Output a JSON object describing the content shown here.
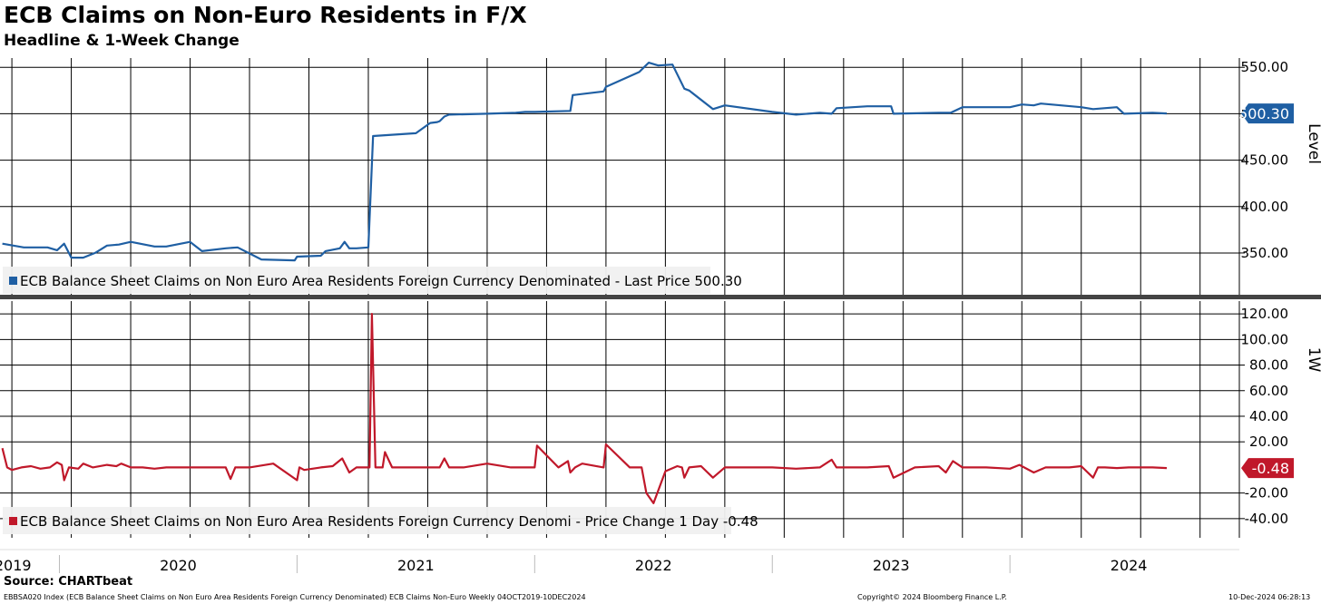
{
  "header": {
    "title": "ECB Claims on Non-Euro Residents in F/X",
    "subtitle": "Headline & 1-Week Change"
  },
  "footer": {
    "source": "Source: CHARTbeat",
    "index_note": "EBBSA020 Index (ECB Balance Sheet Claims on Non Euro Area Residents Foreign Currency Denominated) ECB Claims Non-Euro  Weekly 04OCT2019-10DEC2024",
    "copyright": "Copyright© 2024 Bloomberg Finance L.P.",
    "timestamp": "10-Dec-2024 06:28:13"
  },
  "colors": {
    "level_line": "#1f5fa3",
    "change_line": "#c0182a",
    "grid": "#000000"
  },
  "chart_data": [
    {
      "type": "line",
      "panel": "top",
      "ylabel": "Level",
      "ylim": [
        305,
        560
      ],
      "yticks": [
        "550.00",
        "500.00",
        "450.00",
        "400.00",
        "350.00"
      ],
      "ytick_values": [
        550,
        500,
        450,
        400,
        350
      ],
      "last_value_label": "500.30",
      "last_value": 500.3,
      "legend": "ECB Balance Sheet Claims on Non Euro Area Residents Foreign Currency Denominated - Last Price 500.30",
      "legend_position": "bottom-left",
      "series": [
        {
          "name": "ECB Balance Sheet Claims on Non Euro Area Residents Foreign Currency Denominated",
          "x": [
            2019.76,
            2019.85,
            2019.95,
            2019.99,
            2020.02,
            2020.05,
            2020.1,
            2020.15,
            2020.2,
            2020.25,
            2020.3,
            2020.4,
            2020.45,
            2020.55,
            2020.6,
            2020.7,
            2020.75,
            2020.85,
            2020.99,
            2021.0,
            2021.1,
            2021.12,
            2021.18,
            2021.2,
            2021.22,
            2021.25,
            2021.3,
            2021.32,
            2021.5,
            2021.56,
            2021.59,
            2021.6,
            2021.62,
            2021.64,
            2021.8,
            2021.92,
            2021.96,
            2022.0,
            2022.15,
            2022.16,
            2022.29,
            2022.3,
            2022.44,
            2022.46,
            2022.48,
            2022.52,
            2022.58,
            2022.63,
            2022.65,
            2022.75,
            2022.8,
            2023.0,
            2023.1,
            2023.2,
            2023.25,
            2023.27,
            2023.4,
            2023.5,
            2023.51,
            2023.7,
            2023.75,
            2023.8,
            2024.0,
            2024.05,
            2024.1,
            2024.13,
            2024.3,
            2024.35,
            2024.45,
            2024.48,
            2024.6,
            2024.66
          ],
          "values": [
            360,
            356,
            356,
            353,
            360,
            345,
            345,
            350,
            358,
            359,
            362,
            357,
            357,
            362,
            352,
            355,
            356,
            343,
            342,
            346,
            347,
            352,
            355,
            362,
            355,
            355,
            356,
            476,
            479,
            490,
            491,
            492,
            497,
            499,
            500,
            501,
            502,
            502,
            503,
            520,
            524,
            529,
            545,
            550,
            555,
            552,
            553,
            527,
            525,
            505,
            509,
            502,
            499,
            501,
            500,
            506,
            508,
            508,
            500,
            501,
            501,
            507,
            507,
            510,
            509,
            511,
            507,
            505,
            507,
            500,
            501,
            500.3
          ]
        }
      ]
    },
    {
      "type": "line",
      "panel": "bottom",
      "ylabel": "1W",
      "ylim": [
        -55,
        130
      ],
      "yticks": [
        "120.00",
        "100.00",
        "80.00",
        "60.00",
        "40.00",
        "20.00",
        "-20.00",
        "-40.00"
      ],
      "ytick_values": [
        120,
        100,
        80,
        60,
        40,
        20,
        -20,
        -40
      ],
      "last_value_label": "-0.48",
      "last_value": -0.48,
      "legend": "ECB Balance Sheet Claims on Non Euro Area Residents Foreign Currency Denomi - Price Change 1 Day -0.48",
      "legend_position": "bottom-left",
      "series": [
        {
          "name": "ECB Balance Sheet Claims on Non Euro Area Residents Foreign Currency Denomi - Price Change 1 Day",
          "x": [
            2019.76,
            2019.78,
            2019.8,
            2019.84,
            2019.88,
            2019.92,
            2019.96,
            2019.99,
            2020.01,
            2020.02,
            2020.04,
            2020.08,
            2020.1,
            2020.14,
            2020.2,
            2020.24,
            2020.26,
            2020.3,
            2020.35,
            2020.4,
            2020.45,
            2020.55,
            2020.7,
            2020.72,
            2020.74,
            2020.8,
            2020.9,
            2021.0,
            2021.01,
            2021.03,
            2021.1,
            2021.15,
            2021.19,
            2021.22,
            2021.25,
            2021.28,
            2021.305,
            2021.315,
            2021.33,
            2021.36,
            2021.37,
            2021.4,
            2021.6,
            2021.62,
            2021.64,
            2021.7,
            2021.8,
            2021.9,
            2022.0,
            2022.01,
            2022.1,
            2022.14,
            2022.15,
            2022.17,
            2022.2,
            2022.29,
            2022.3,
            2022.4,
            2022.45,
            2022.47,
            2022.5,
            2022.55,
            2022.6,
            2022.62,
            2022.63,
            2022.65,
            2022.7,
            2022.75,
            2022.8,
            2022.9,
            2023.0,
            2023.1,
            2023.2,
            2023.25,
            2023.27,
            2023.3,
            2023.4,
            2023.49,
            2023.51,
            2023.6,
            2023.7,
            2023.73,
            2023.76,
            2023.8,
            2023.9,
            2024.0,
            2024.04,
            2024.1,
            2024.15,
            2024.25,
            2024.3,
            2024.35,
            2024.37,
            2024.4,
            2024.45,
            2024.5,
            2024.55,
            2024.6,
            2024.66
          ],
          "values": [
            15,
            0,
            -2,
            0,
            1,
            -1,
            0,
            4,
            2,
            -10,
            0,
            -1,
            3,
            0,
            2,
            1,
            3,
            0,
            0,
            -1,
            0,
            0,
            0,
            -9,
            0,
            0,
            3,
            -10,
            0,
            -2,
            0,
            1,
            7,
            -4,
            0,
            0,
            0,
            120,
            0,
            0,
            12,
            0,
            0,
            7,
            0,
            0,
            3,
            0,
            0,
            17,
            0,
            5,
            -4,
            0,
            3,
            0,
            18,
            0,
            0,
            -20,
            -28,
            -3,
            1,
            0,
            -8,
            0,
            1,
            -8,
            0,
            0,
            0,
            -1,
            0,
            6,
            0,
            0,
            0,
            1,
            -8,
            0,
            1,
            -4,
            5,
            0,
            0,
            -1,
            2,
            -4,
            0,
            0,
            1,
            -8,
            0,
            0,
            -0.48,
            0,
            0,
            0,
            -0.48
          ]
        }
      ]
    }
  ],
  "xaxis": {
    "years": [
      "2019",
      "2020",
      "2021",
      "2022",
      "2023",
      "2024"
    ]
  }
}
